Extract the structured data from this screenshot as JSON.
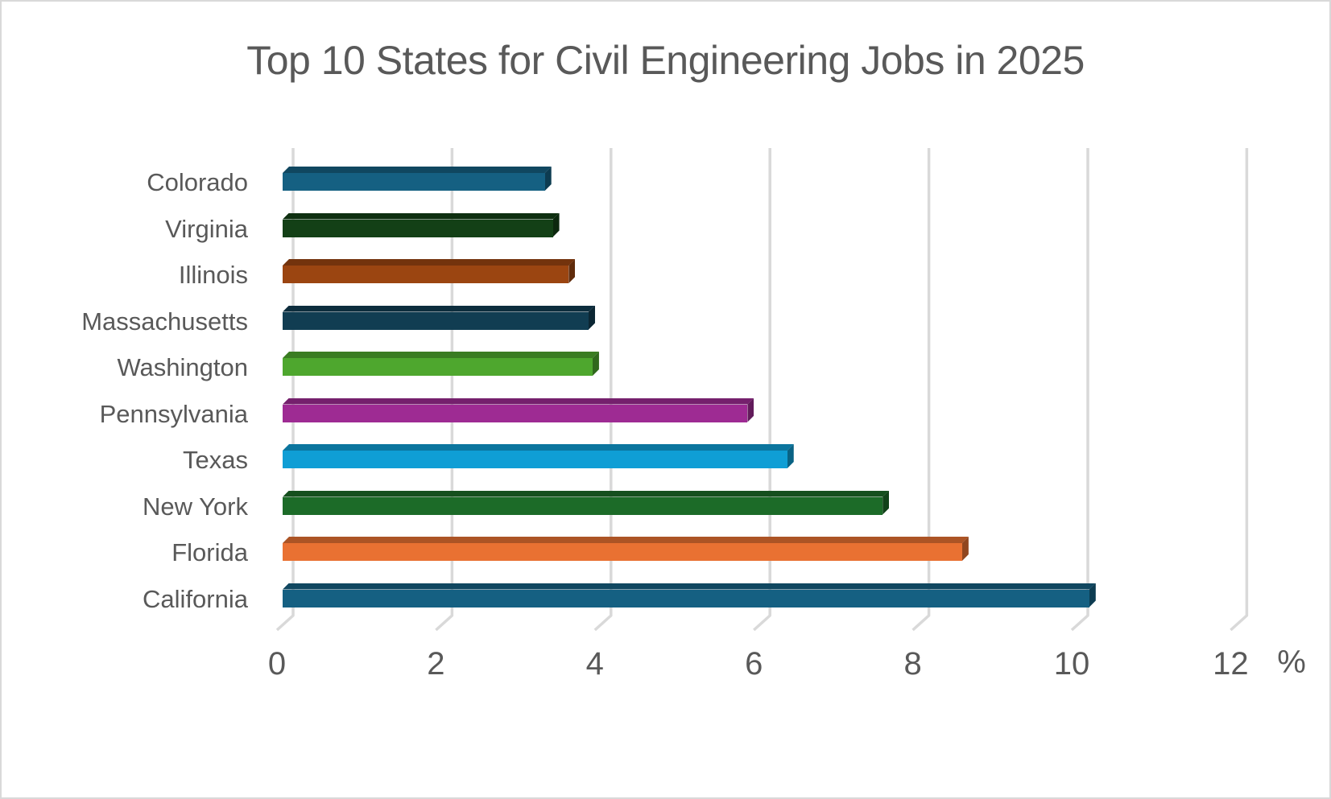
{
  "window": {
    "background": "#FFFFFF",
    "border_color": "#D9D9D9"
  },
  "chart_data": {
    "type": "bar",
    "orientation": "horizontal",
    "style": "3d-beveled-bars",
    "title": "Top 10 States for Civil Engineering Jobs in 2025",
    "unit_label": "%",
    "xlabel": "%",
    "ylabel": "",
    "xlim": [
      0,
      12
    ],
    "x_ticks": [
      0,
      2,
      4,
      6,
      8,
      10,
      12
    ],
    "x_tick_labels": [
      "0",
      "2",
      "4",
      "6",
      "8",
      "10",
      "12"
    ],
    "grid": true,
    "legend": "none",
    "categories": [
      "Colorado",
      "Virginia",
      "Illinois",
      "Massachusetts",
      "Washington",
      "Pennsylvania",
      "Texas",
      "New York",
      "Florida",
      "California"
    ],
    "categories_order": "top-to-bottom",
    "values": [
      3.3,
      3.4,
      3.6,
      3.85,
      3.9,
      5.85,
      6.35,
      7.55,
      8.55,
      10.15
    ],
    "bar_colors": [
      "#156082",
      "#134016",
      "#9B4511",
      "#113D52",
      "#4EA72E",
      "#9E2B93",
      "#0F9ED5",
      "#1C6B28",
      "#E97132",
      "#156082"
    ],
    "colors": {
      "text": "#595959",
      "title": "#595959",
      "gridline": "#D9D9D9",
      "background": "#FFFFFF"
    }
  }
}
